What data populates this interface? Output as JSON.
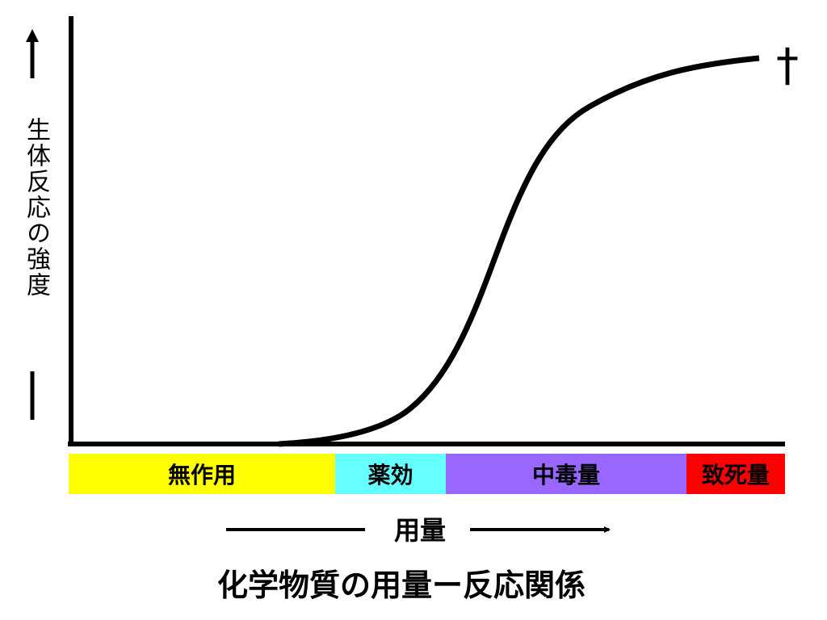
{
  "title": "化学物質の用量ー反応関係",
  "y_label": "生体反応の強度",
  "x_label": "用量",
  "end_mark": "†",
  "bands": [
    {
      "label": "無作用",
      "color": "#ffff00"
    },
    {
      "label": "薬効",
      "color": "#66ffff"
    },
    {
      "label": "中毒量",
      "color": "#9966ff"
    },
    {
      "label": "致死量",
      "color": "#ff0000"
    }
  ]
}
